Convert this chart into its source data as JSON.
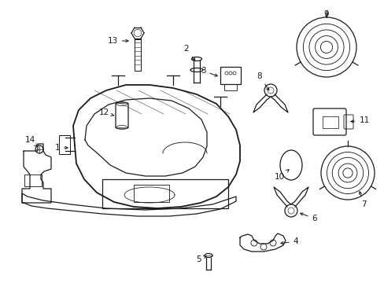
{
  "background_color": "#ffffff",
  "line_color": "#1a1a1a",
  "label_color": "#1a1a1a",
  "lw": 0.9,
  "figw": 4.89,
  "figh": 3.6,
  "dpi": 100
}
